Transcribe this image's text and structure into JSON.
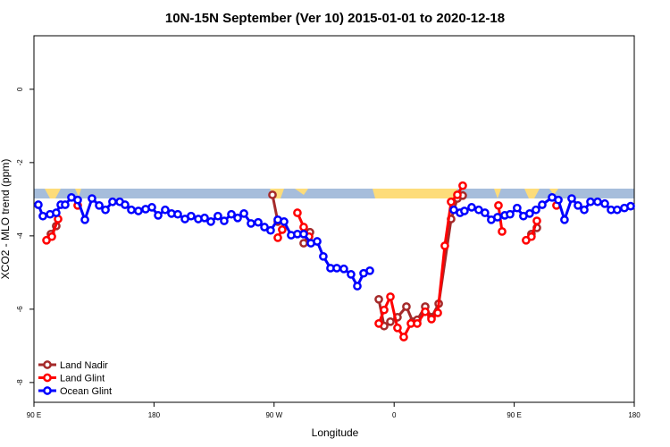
{
  "chart_data": {
    "type": "line",
    "title": "10N-15N September (Ver 10)   2015-01-01 to 2020-12-18",
    "x_label": "Longitude",
    "y_label": "XCO2 - MLO trend (ppm)",
    "xlim": [
      90,
      540
    ],
    "ylim": [
      -8.54,
      1.46
    ],
    "xticks": [
      {
        "value": 90,
        "label": "90 E"
      },
      180,
      {
        "value": 270,
        "label": "90 W"
      },
      {
        "value": 360,
        "label": "0"
      },
      {
        "value": 450,
        "label": "90 E"
      },
      {
        "value": 540,
        "label": "180"
      }
    ],
    "yticks": [
      0,
      -2,
      -4,
      -6,
      -8
    ],
    "legend": "bottom-left",
    "series": [
      {
        "name": "Land Nadir",
        "color": "#a52a2a",
        "x": [
          102.7,
          106.7,
          null,
          268.8,
          272.8,
          null,
          292.2,
          296.9,
          null,
          348.5,
          352.5,
          357.2,
          362.5,
          369.2,
          374.0,
          377.3,
          383.3,
          388.0,
          393.4,
          402.7,
          407.4,
          411.4,
          null,
          462.9,
          467.0
        ],
        "values": [
          -3.95,
          -3.73,
          null,
          -2.88,
          -3.61,
          null,
          -4.2,
          -3.9,
          null,
          -5.73,
          -6.46,
          -6.34,
          -6.22,
          -5.93,
          -6.34,
          -6.29,
          -5.93,
          -6.22,
          -5.85,
          -3.54,
          -2.98,
          -2.9,
          null,
          -3.95,
          -3.78
        ]
      },
      {
        "name": "Land Glint",
        "color": "#ff0000",
        "x": [
          99.4,
          103.4,
          108.1,
          null,
          122.8,
          null,
          272.8,
          276.1,
          null,
          287.5,
          292.2,
          296.2,
          null,
          348.5,
          352.5,
          357.2,
          362.5,
          367.2,
          372.6,
          377.3,
          383.3,
          388.0,
          392.7,
          398.0,
          402.7,
          407.4,
          411.4,
          null,
          438.2,
          440.9,
          null,
          458.9,
          462.9,
          467.0,
          null,
          481.7
        ],
        "values": [
          -4.12,
          -4.02,
          -3.54,
          null,
          -3.17,
          null,
          -4.05,
          -3.83,
          null,
          -3.37,
          -3.76,
          -4.02,
          null,
          -6.39,
          -6.02,
          -5.66,
          -6.51,
          -6.76,
          -6.39,
          -6.39,
          -6.07,
          -6.27,
          -6.1,
          -4.27,
          -3.07,
          -2.88,
          -2.63,
          null,
          -3.17,
          -3.88,
          null,
          -4.12,
          -4.02,
          -3.59,
          null,
          -3.17
        ]
      },
      {
        "name": "Ocean Glint",
        "color": "#0000ff",
        "x": [
          93.3,
          96.7,
          102.1,
          106.7,
          110.1,
          113.4,
          118.1,
          122.8,
          128.2,
          133.5,
          138.9,
          143.6,
          148.9,
          154.3,
          158.3,
          163.0,
          168.3,
          173.7,
          178.4,
          183.1,
          188.4,
          193.1,
          197.8,
          203.2,
          207.8,
          213.2,
          217.9,
          222.6,
          227.9,
          232.6,
          238.0,
          242.7,
          247.4,
          252.7,
          258.1,
          262.8,
          267.4,
          272.8,
          277.5,
          282.8,
          287.5,
          292.2,
          297.6,
          302.3,
          306.9,
          312.3,
          317.0,
          322.3,
          327.7,
          332.4,
          337.1,
          341.8,
          null,
          404.7,
          409.4,
          412.7,
          418.1,
          423.4,
          428.1,
          432.8,
          437.5,
          442.9,
          446.9,
          452.2,
          456.9,
          461.6,
          466.3,
          471.0,
          478.4,
          483.1,
          487.7,
          493.1,
          497.8,
          502.5,
          507.2,
          512.5,
          517.9,
          522.6,
          527.2,
          532.6,
          537.3
        ],
        "values": [
          -3.15,
          -3.46,
          -3.41,
          -3.37,
          -3.15,
          -3.15,
          -2.95,
          -3.02,
          -3.56,
          -2.98,
          -3.17,
          -3.29,
          -3.07,
          -3.07,
          -3.15,
          -3.29,
          -3.32,
          -3.27,
          -3.22,
          -3.44,
          -3.29,
          -3.39,
          -3.41,
          -3.54,
          -3.46,
          -3.54,
          -3.51,
          -3.61,
          -3.46,
          -3.59,
          -3.41,
          -3.51,
          -3.39,
          -3.66,
          -3.63,
          -3.76,
          -3.85,
          -3.56,
          -3.61,
          -3.98,
          -3.95,
          -3.95,
          -4.2,
          -4.15,
          -4.56,
          -4.88,
          -4.88,
          -4.9,
          -5.05,
          -5.37,
          -5.02,
          -4.95,
          null,
          -3.29,
          -3.37,
          -3.32,
          -3.22,
          -3.29,
          -3.37,
          -3.56,
          -3.49,
          -3.44,
          -3.41,
          -3.24,
          -3.46,
          -3.39,
          -3.29,
          -3.15,
          -2.95,
          -3.02,
          -3.56,
          -2.98,
          -3.17,
          -3.29,
          -3.07,
          -3.07,
          -3.12,
          -3.29,
          -3.29,
          -3.24,
          -3.19
        ]
      }
    ]
  }
}
